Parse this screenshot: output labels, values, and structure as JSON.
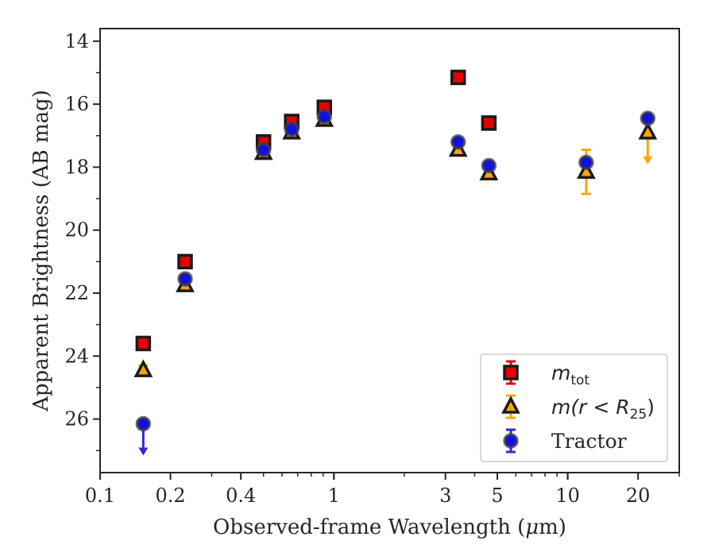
{
  "chart_data": {
    "type": "scatter",
    "xscale": "log",
    "xlim": [
      0.1,
      30
    ],
    "ylim": [
      27.7,
      13.6
    ],
    "y_inverted": true,
    "xlabel": "Observed-frame Wavelength (",
    "xlabel_unit": "m)",
    "ylabel": "Apparent Brightness (AB mag)",
    "xticks": [
      {
        "value": 0.1,
        "label": "0.1"
      },
      {
        "value": 0.2,
        "label": "0.2"
      },
      {
        "value": 0.4,
        "label": "0.4"
      },
      {
        "value": 1,
        "label": "1"
      },
      {
        "value": 3,
        "label": "3"
      },
      {
        "value": 5,
        "label": "5"
      },
      {
        "value": 10,
        "label": "10"
      },
      {
        "value": 20,
        "label": "20"
      }
    ],
    "yticks": [
      {
        "value": 14,
        "label": "14"
      },
      {
        "value": 16,
        "label": "16"
      },
      {
        "value": 18,
        "label": "18"
      },
      {
        "value": 20,
        "label": "20"
      },
      {
        "value": 22,
        "label": "22"
      },
      {
        "value": 24,
        "label": "24"
      },
      {
        "value": 26,
        "label": "26"
      }
    ],
    "legend_position": "bottom-right",
    "series": [
      {
        "key": "mtot",
        "name": "m",
        "name_sub": "tot",
        "marker": "square",
        "fill": "#e60000",
        "edge": "#1a1a1a",
        "ecolor": "#e60000",
        "points": [
          {
            "x": 0.153,
            "y": 23.6,
            "err": 0
          },
          {
            "x": 0.231,
            "y": 21.0,
            "err": 0
          },
          {
            "x": 0.5,
            "y": 17.2,
            "err": 0
          },
          {
            "x": 0.66,
            "y": 16.55,
            "err": 0
          },
          {
            "x": 0.91,
            "y": 16.1,
            "err": 0
          },
          {
            "x": 3.4,
            "y": 15.15,
            "err": 0
          },
          {
            "x": 4.6,
            "y": 16.6,
            "err": 0
          }
        ]
      },
      {
        "key": "mr25",
        "name": "m(r < R",
        "name_sub": "25",
        "name_tail": ")",
        "marker": "triangle",
        "fill": "#ffa500",
        "edge": "#1a1a1a",
        "ecolor": "#ffa500",
        "points": [
          {
            "x": 0.153,
            "y": 24.45,
            "err": 0.15
          },
          {
            "x": 0.231,
            "y": 21.75,
            "err": 0
          },
          {
            "x": 0.5,
            "y": 17.55,
            "err": 0
          },
          {
            "x": 0.66,
            "y": 16.9,
            "err": 0
          },
          {
            "x": 0.91,
            "y": 16.5,
            "err": 0
          },
          {
            "x": 3.4,
            "y": 17.45,
            "err": 0
          },
          {
            "x": 4.6,
            "y": 18.2,
            "err": 0
          },
          {
            "x": 12.0,
            "y": 18.15,
            "err": 0.7
          },
          {
            "x": 22.0,
            "y": 16.9,
            "upper_limit": true
          }
        ]
      },
      {
        "key": "tractor",
        "name": "Tractor",
        "marker": "circle",
        "fill": "#1010e0",
        "edge": "#404040",
        "ecolor": "#2b2bdb",
        "points": [
          {
            "x": 0.153,
            "y": 26.15,
            "upper_limit": true
          },
          {
            "x": 0.231,
            "y": 21.55,
            "err": 0
          },
          {
            "x": 0.5,
            "y": 17.45,
            "err": 0
          },
          {
            "x": 0.66,
            "y": 16.8,
            "err": 0
          },
          {
            "x": 0.91,
            "y": 16.4,
            "err": 0
          },
          {
            "x": 3.4,
            "y": 17.2,
            "err": 0
          },
          {
            "x": 4.6,
            "y": 17.95,
            "err": 0
          },
          {
            "x": 12.0,
            "y": 17.85,
            "err": 0
          },
          {
            "x": 22.0,
            "y": 16.45,
            "err": 0
          }
        ]
      }
    ]
  }
}
